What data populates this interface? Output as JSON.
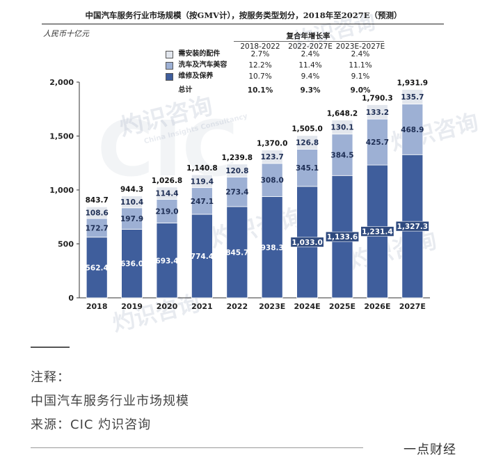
{
  "chart_data": {
    "type": "bar",
    "stacked": true,
    "title": "中国汽车服务行业市场规模（按GMV计），按服务类型划分，2018年至2027E（预测）",
    "unit_label": "人民币十亿元",
    "categories": [
      "2018",
      "2019",
      "2020",
      "2021",
      "2022",
      "2023E",
      "2024E",
      "2025E",
      "2026E",
      "2027E"
    ],
    "series": [
      {
        "name": "维修及保养",
        "color": "#3f5e9c",
        "values": [
          562.4,
          636.0,
          693.4,
          774.4,
          845.7,
          938.3,
          1033.0,
          1133.6,
          1231.4,
          1327.3
        ],
        "labels": [
          "562.4",
          "636.0",
          "693.4",
          "774.4",
          "845.7",
          "938.3",
          "1,033.0",
          "1,133.6",
          "1,231.4",
          "1,327.3"
        ]
      },
      {
        "name": "洗车及汽车美容",
        "color": "#9db0d4",
        "values": [
          172.7,
          197.9,
          219.0,
          247.1,
          273.4,
          308.0,
          345.1,
          384.5,
          425.7,
          468.9
        ],
        "labels": [
          "172.7",
          "197.9",
          "219.0",
          "247.1",
          "273.4",
          "308.0",
          "345.1",
          "384.5",
          "425.7",
          "468.9"
        ]
      },
      {
        "name": "需安装的配件",
        "color": "#e2e6ed",
        "values": [
          108.6,
          110.4,
          114.4,
          119.4,
          120.8,
          123.7,
          126.8,
          130.1,
          133.2,
          135.7
        ],
        "labels": [
          "108.6",
          "110.4",
          "114.4",
          "119.4",
          "120.8",
          "123.7",
          "126.8",
          "130.1",
          "133.2",
          "135.7"
        ]
      }
    ],
    "totals": [
      "843.7",
      "944.3",
      "1,026.8",
      "1,140.8",
      "1,239.8",
      "1,370.0",
      "1,505.0",
      "1,648.2",
      "1,790.3",
      "1,931.9"
    ],
    "yticks": [
      0,
      500,
      1000,
      1500,
      2000
    ],
    "ytick_labels": [
      "0",
      "500",
      "1,000",
      "1,500",
      "2,000"
    ],
    "ylim": [
      0,
      2000
    ],
    "legend": "top-left"
  },
  "cagr_table": {
    "header": "复合年增长率",
    "columns": [
      "2018-2022",
      "2022-2027E",
      "2023E-2027E"
    ],
    "rows": [
      {
        "label": "需安装的配件",
        "color": "#e2e6ed",
        "values": [
          "2.7%",
          "2.4%",
          "2.4%"
        ]
      },
      {
        "label": "洗车及汽车美容",
        "color": "#9db0d4",
        "values": [
          "12.2%",
          "11.4%",
          "11.1%"
        ]
      },
      {
        "label": "维修及保养",
        "color": "#3f5e9c",
        "values": [
          "10.7%",
          "9.4%",
          "9.1%"
        ]
      }
    ],
    "total": {
      "label": "总计",
      "values": [
        "10.1%",
        "9.3%",
        "9.0%"
      ]
    }
  },
  "watermarks": {
    "logo": "CIC",
    "name_cn": "灼识咨询",
    "name_en": "China Insights Consultancy"
  },
  "footer": {
    "note_label": "注释：",
    "note_text": "中国汽车服务行业市场规模",
    "source": "来源：CIC 灼识咨询",
    "brand": "一点财经"
  }
}
